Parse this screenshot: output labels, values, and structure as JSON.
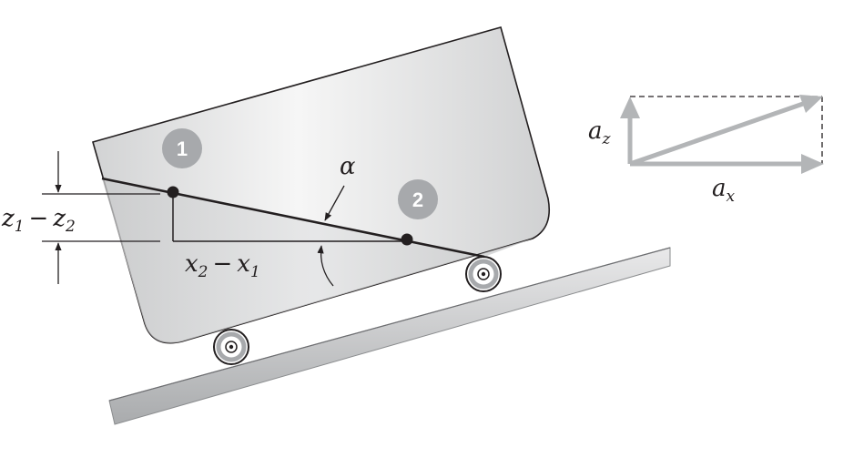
{
  "labels": {
    "alpha": "α",
    "z_height": {
      "var1": "z",
      "sub1": "1",
      "minus": "−",
      "var2": "z",
      "sub2": "2"
    },
    "x_length": {
      "var1": "x",
      "sub1": "2",
      "minus": "−",
      "var2": "x",
      "sub2": "1"
    },
    "az": {
      "var": "a",
      "sub": "z"
    },
    "ax": {
      "var": "a",
      "sub": "x"
    }
  },
  "points": [
    {
      "number": "1"
    },
    {
      "number": "2"
    }
  ],
  "colors": {
    "ink": "#231f20",
    "vector_gray": "#b3b5b7",
    "badge_gray": "#a7a9ac",
    "tank_light": "#f4f4f4",
    "tank_dark": "#cfcfd0"
  }
}
